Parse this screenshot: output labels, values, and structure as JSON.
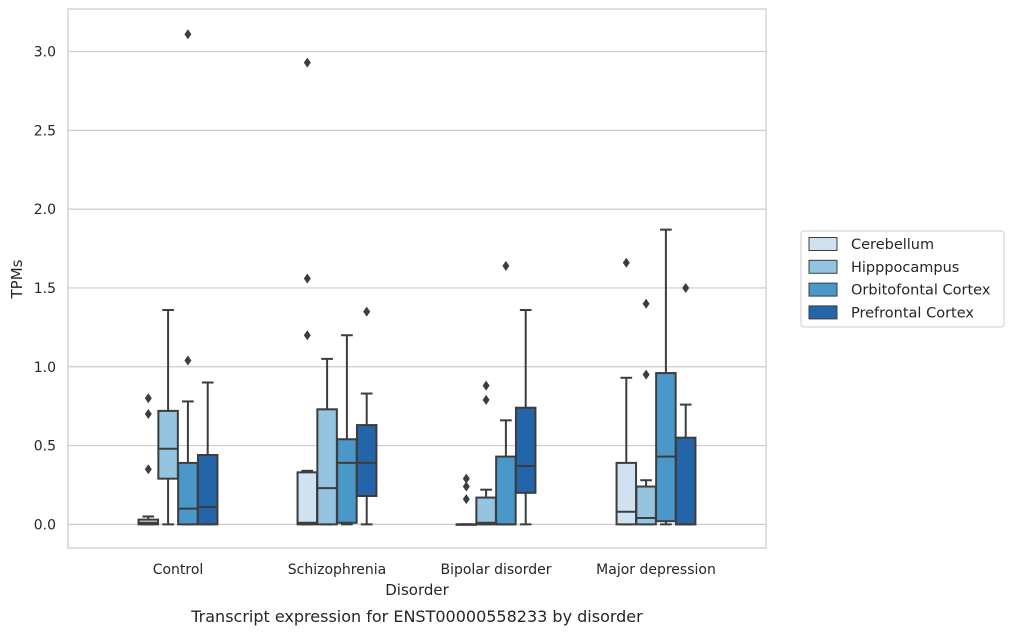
{
  "chart_data": {
    "type": "box",
    "title": "",
    "caption": "Transcript expression for ENST00000558233 by disorder",
    "xlabel": "Disorder",
    "ylabel": "TPMs",
    "ylim": [
      -0.15,
      3.27
    ],
    "yticks": [
      "0.0",
      "0.5",
      "1.0",
      "1.5",
      "2.0",
      "2.5",
      "3.0"
    ],
    "grid": true,
    "legend_position": "right",
    "categories": [
      "Control",
      "Schizophrenia",
      "Bipolar disorder",
      "Major depression"
    ],
    "series": [
      {
        "name": "Cerebellum",
        "color": "#d0e1f2",
        "boxes": [
          {
            "whisker_low": 0.0,
            "q1": 0.0,
            "median": 0.01,
            "q3": 0.03,
            "whisker_high": 0.05,
            "outliers": [
              0.35,
              0.7,
              0.8
            ]
          },
          {
            "whisker_low": 0.0,
            "q1": 0.0,
            "median": 0.01,
            "q3": 0.33,
            "whisker_high": 0.34,
            "outliers": [
              1.2,
              1.56,
              2.93
            ]
          },
          {
            "whisker_low": 0.0,
            "q1": 0.0,
            "median": 0.0,
            "q3": 0.0,
            "whisker_high": 0.0,
            "outliers": [
              0.16,
              0.24,
              0.29
            ]
          },
          {
            "whisker_low": 0.0,
            "q1": 0.0,
            "median": 0.08,
            "q3": 0.39,
            "whisker_high": 0.93,
            "outliers": [
              1.66
            ]
          }
        ]
      },
      {
        "name": "Hipppocampus",
        "color": "#94c4df",
        "boxes": [
          {
            "whisker_low": 0.0,
            "q1": 0.29,
            "median": 0.48,
            "q3": 0.72,
            "whisker_high": 1.36,
            "outliers": []
          },
          {
            "whisker_low": 0.0,
            "q1": 0.0,
            "median": 0.23,
            "q3": 0.73,
            "whisker_high": 1.05,
            "outliers": []
          },
          {
            "whisker_low": 0.0,
            "q1": 0.0,
            "median": 0.01,
            "q3": 0.17,
            "whisker_high": 0.22,
            "outliers": [
              0.79,
              0.88
            ]
          },
          {
            "whisker_low": 0.0,
            "q1": 0.0,
            "median": 0.04,
            "q3": 0.24,
            "whisker_high": 0.28,
            "outliers": [
              0.95,
              1.4
            ]
          }
        ]
      },
      {
        "name": "Orbitofontal Cortex",
        "color": "#4a98c9",
        "boxes": [
          {
            "whisker_low": 0.0,
            "q1": 0.0,
            "median": 0.1,
            "q3": 0.39,
            "whisker_high": 0.78,
            "outliers": [
              1.04,
              3.11
            ]
          },
          {
            "whisker_low": 0.0,
            "q1": 0.01,
            "median": 0.39,
            "q3": 0.54,
            "whisker_high": 1.2,
            "outliers": []
          },
          {
            "whisker_low": 0.0,
            "q1": 0.0,
            "median": 0.0,
            "q3": 0.43,
            "whisker_high": 0.66,
            "outliers": [
              1.64
            ]
          },
          {
            "whisker_low": 0.0,
            "q1": 0.02,
            "median": 0.43,
            "q3": 0.96,
            "whisker_high": 1.87,
            "outliers": []
          }
        ]
      },
      {
        "name": "Prefrontal Cortex",
        "color": "#2464a8",
        "boxes": [
          {
            "whisker_low": 0.0,
            "q1": 0.0,
            "median": 0.11,
            "q3": 0.44,
            "whisker_high": 0.9,
            "outliers": []
          },
          {
            "whisker_low": 0.0,
            "q1": 0.18,
            "median": 0.39,
            "q3": 0.63,
            "whisker_high": 0.83,
            "outliers": [
              1.35
            ]
          },
          {
            "whisker_low": 0.0,
            "q1": 0.2,
            "median": 0.37,
            "q3": 0.74,
            "whisker_high": 1.36,
            "outliers": []
          },
          {
            "whisker_low": 0.0,
            "q1": 0.0,
            "median": 0.0,
            "q3": 0.55,
            "whisker_high": 0.76,
            "outliers": [
              1.5
            ]
          }
        ]
      }
    ]
  }
}
